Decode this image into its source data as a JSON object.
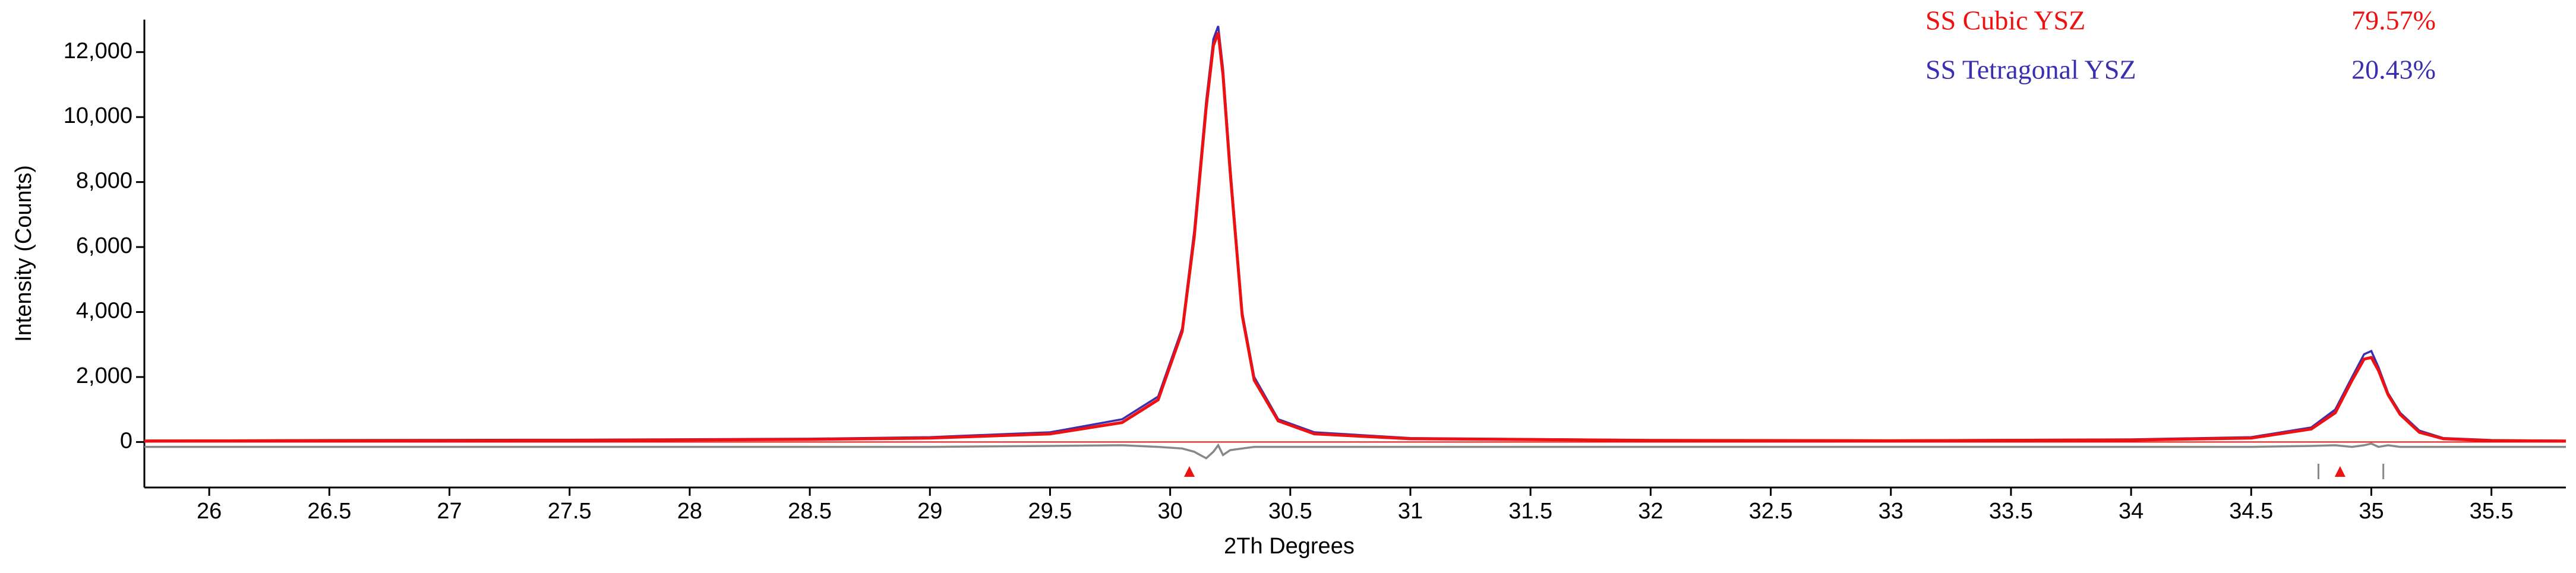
{
  "chart_data": {
    "type": "line",
    "xlabel": "2Th Degrees",
    "ylabel": "Intensity (Counts)",
    "xlim": [
      25.73,
      35.81
    ],
    "ylim": [
      -1400,
      13000
    ],
    "xticks": [
      26,
      26.5,
      27,
      27.5,
      28,
      28.5,
      29,
      29.5,
      30,
      30.5,
      31,
      31.5,
      32,
      32.5,
      33,
      33.5,
      34,
      34.5,
      35,
      35.5
    ],
    "yticks": [
      0,
      {
        "value": 2000,
        "label": "2,000"
      },
      {
        "value": 4000,
        "label": "4,000"
      },
      {
        "value": 6000,
        "label": "6,000"
      },
      {
        "value": 8000,
        "label": "8,000"
      },
      {
        "value": 10000,
        "label": "10,000"
      },
      {
        "value": 12000,
        "label": "12,000"
      }
    ],
    "x": [
      25.73,
      26.5,
      27.5,
      28.5,
      29.0,
      29.5,
      29.8,
      29.95,
      30.05,
      30.1,
      30.15,
      30.18,
      30.2,
      30.22,
      30.25,
      30.3,
      30.35,
      30.45,
      30.6,
      31.0,
      32.0,
      33.0,
      34.0,
      34.5,
      34.75,
      34.85,
      34.92,
      34.97,
      35.0,
      35.03,
      35.07,
      35.12,
      35.2,
      35.3,
      35.5,
      35.81
    ],
    "series": [
      {
        "color": "#3a2fb0",
        "values": [
          40,
          60,
          70,
          100,
          150,
          300,
          700,
          1400,
          3500,
          6500,
          10500,
          12400,
          12800,
          11500,
          8500,
          4000,
          2000,
          700,
          300,
          120,
          60,
          50,
          80,
          150,
          450,
          1000,
          2000,
          2700,
          2800,
          2300,
          1500,
          900,
          350,
          120,
          60,
          40
        ]
      },
      {
        "color": "#ee1111",
        "values": [
          30,
          40,
          50,
          80,
          120,
          250,
          600,
          1300,
          3400,
          6300,
          10300,
          12200,
          12600,
          11300,
          8300,
          3900,
          1900,
          650,
          250,
          100,
          50,
          40,
          60,
          120,
          400,
          900,
          1900,
          2550,
          2600,
          2200,
          1450,
          850,
          300,
          100,
          40,
          30
        ]
      },
      {
        "color": "#888888",
        "values": [
          -150,
          -150,
          -150,
          -150,
          -150,
          -120,
          -100,
          -150,
          -200,
          -300,
          -500,
          -300,
          -100,
          -400,
          -250,
          -200,
          -150,
          -150,
          -150,
          -150,
          -150,
          -150,
          -150,
          -150,
          -120,
          -100,
          -150,
          -100,
          -50,
          -150,
          -100,
          -150,
          -150,
          -150,
          -150,
          -150
        ]
      }
    ],
    "reflection_markers": [
      {
        "color": "#ee1111",
        "x": [
          30.08,
          34.87
        ]
      },
      {
        "color": "#888888",
        "x": [
          34.78,
          35.05
        ]
      }
    ],
    "phases": [
      {
        "name": "SS Cubic YSZ",
        "color": "#ee1111",
        "fraction": 79.57,
        "value_label": "79.57%"
      },
      {
        "name": "SS Tetragonal YSZ",
        "color": "#3a2fb0",
        "fraction": 20.43,
        "value_label": "20.43%"
      }
    ]
  }
}
